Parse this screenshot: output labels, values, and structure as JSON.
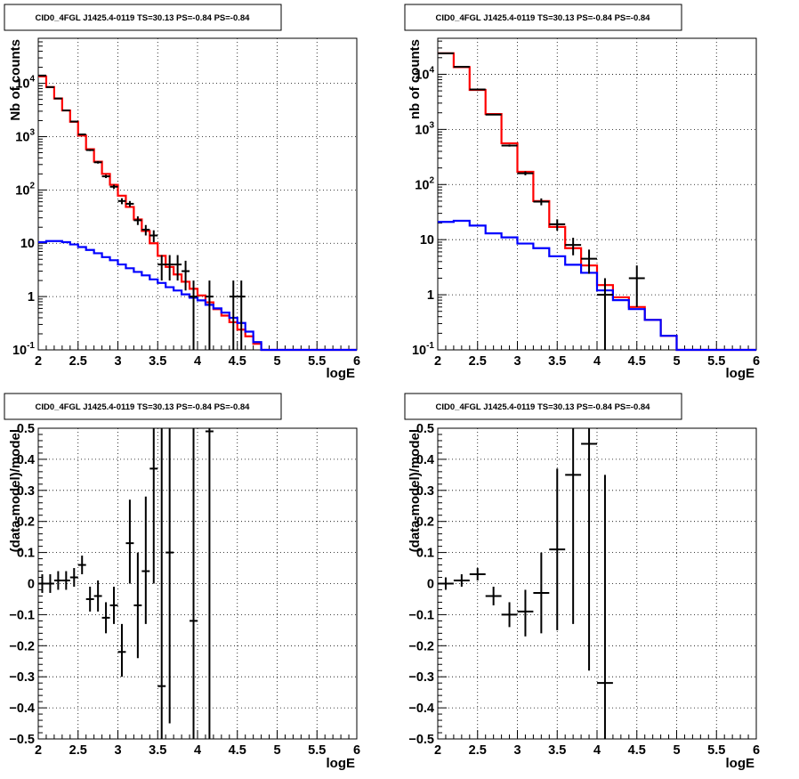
{
  "chart_data": [
    {
      "type": "line",
      "title": "CID0_4FGL J1425.4-0119 TS=30.13 PS=-0.84 PS=-0.84",
      "xlabel": "logE",
      "ylabel": "Nb of counts",
      "xlim": [
        2,
        6
      ],
      "ylim": [
        0.1,
        70000
      ],
      "yscale": "log",
      "xticks": [
        "2",
        "2.5",
        "3",
        "3.5",
        "4",
        "4.5",
        "5",
        "5.5",
        "6"
      ],
      "yticks": [
        "10^-1",
        "1",
        "10",
        "10^2",
        "10^3",
        "10^4"
      ],
      "grid": true,
      "bin_edges": [
        2,
        2.1,
        2.2,
        2.3,
        2.4,
        2.5,
        2.6,
        2.7,
        2.8,
        2.9,
        3.0,
        3.1,
        3.2,
        3.3,
        3.4,
        3.5,
        3.6,
        3.7,
        3.8,
        3.9,
        4.0,
        4.1,
        4.2,
        4.3,
        4.4,
        4.5,
        4.6,
        4.7,
        4.8,
        4.9,
        5.0,
        5.1,
        5.2,
        5.3,
        5.4,
        5.5,
        5.6,
        5.7,
        5.8,
        5.9,
        6.0
      ],
      "series": [
        {
          "role": "model",
          "color": "#ff0000",
          "values": [
            13500,
            8500,
            5200,
            3100,
            1900,
            1050,
            580,
            340,
            200,
            125,
            78,
            48,
            28,
            17,
            10,
            5.8,
            3.6,
            2.6,
            1.9,
            1.4,
            1.05,
            0.78,
            0.58,
            0.44,
            0.33,
            0.24,
            0.18,
            0.13,
            0.1,
            0.1,
            0.1,
            0.1,
            0.1,
            0.1,
            0.1,
            0.1,
            0.1,
            0.1,
            0.1,
            0.1
          ]
        },
        {
          "role": "background",
          "color": "#0000ff",
          "values": [
            10.5,
            11,
            11,
            10.5,
            9.5,
            8.5,
            7.5,
            6.5,
            5.5,
            4.8,
            4.0,
            3.4,
            2.9,
            2.5,
            2.1,
            1.8,
            1.5,
            1.3,
            1.1,
            0.95,
            0.85,
            0.7,
            0.6,
            0.5,
            0.4,
            0.32,
            0.22,
            0.14,
            0.1,
            0.1,
            0.1,
            0.1,
            0.1,
            0.1,
            0.1,
            0.1,
            0.1,
            0.1,
            0.1,
            0.1
          ]
        },
        {
          "role": "data",
          "color": "#000000",
          "points": [
            {
              "x": 2.05,
              "y": 14000,
              "elo": 13880,
              "ehi": 14120
            },
            {
              "x": 2.15,
              "y": 8500,
              "elo": 8410,
              "ehi": 8590
            },
            {
              "x": 2.25,
              "y": 5200,
              "elo": 5130,
              "ehi": 5270
            },
            {
              "x": 2.35,
              "y": 3100,
              "elo": 3045,
              "ehi": 3155
            },
            {
              "x": 2.45,
              "y": 1920,
              "elo": 1875,
              "ehi": 1965
            },
            {
              "x": 2.55,
              "y": 1100,
              "elo": 1066,
              "ehi": 1134
            },
            {
              "x": 2.65,
              "y": 560,
              "elo": 537,
              "ehi": 584
            },
            {
              "x": 2.75,
              "y": 330,
              "elo": 312,
              "ehi": 348
            },
            {
              "x": 2.85,
              "y": 180,
              "elo": 167,
              "ehi": 193
            },
            {
              "x": 2.95,
              "y": 115,
              "elo": 104.5,
              "ehi": 125.5
            },
            {
              "x": 3.05,
              "y": 62,
              "elo": 54,
              "ehi": 70
            },
            {
              "x": 3.15,
              "y": 55,
              "elo": 48,
              "ehi": 62
            },
            {
              "x": 3.25,
              "y": 27,
              "elo": 22,
              "ehi": 32
            },
            {
              "x": 3.35,
              "y": 18,
              "elo": 14,
              "ehi": 22
            },
            {
              "x": 3.45,
              "y": 14,
              "elo": 10.5,
              "ehi": 17.5
            },
            {
              "x": 3.55,
              "y": 4,
              "elo": 2,
              "ehi": 6
            },
            {
              "x": 3.65,
              "y": 4,
              "elo": 2,
              "ehi": 6
            },
            {
              "x": 3.75,
              "y": 4,
              "elo": 2,
              "ehi": 6
            },
            {
              "x": 3.85,
              "y": 3,
              "elo": 1.3,
              "ehi": 4.7
            },
            {
              "x": 3.95,
              "y": 1,
              "elo": 0.1,
              "ehi": 2
            },
            {
              "x": 4.15,
              "y": 1,
              "elo": 0.1,
              "ehi": 2
            },
            {
              "x": 4.45,
              "y": 1,
              "elo": 0.1,
              "ehi": 2
            },
            {
              "x": 4.55,
              "y": 1,
              "elo": 0.1,
              "ehi": 2
            }
          ]
        }
      ]
    },
    {
      "type": "line",
      "title": "CID0_4FGL J1425.4-0119 TS=30.13 PS=-0.84 PS=-0.84",
      "xlabel": "logE",
      "ylabel": "nb of counts",
      "xlim": [
        2,
        6
      ],
      "ylim": [
        0.1,
        45000
      ],
      "yscale": "log",
      "xticks": [
        "2",
        "2.5",
        "3",
        "3.5",
        "4",
        "4.5",
        "5",
        "5.5",
        "6"
      ],
      "yticks": [
        "10^-1",
        "1",
        "10",
        "10^2",
        "10^3",
        "10^4"
      ],
      "grid": true,
      "bin_edges": [
        2.0,
        2.2,
        2.4,
        2.6,
        2.8,
        3.0,
        3.2,
        3.4,
        3.6,
        3.8,
        4.0,
        4.2,
        4.4,
        4.6,
        4.8,
        5.0,
        5.2,
        5.4,
        5.6,
        5.8,
        6.0
      ],
      "series": [
        {
          "role": "model",
          "color": "#ff0000",
          "values": [
            24000,
            13500,
            5200,
            1900,
            560,
            170,
            50,
            17,
            7,
            3.4,
            1.5,
            0.9,
            0.6,
            0.35,
            0.18,
            0.1,
            0.1,
            0.1,
            0.1,
            0.1
          ]
        },
        {
          "role": "background",
          "color": "#0000ff",
          "values": [
            21,
            22,
            18,
            13,
            11,
            8.5,
            7,
            5,
            3.5,
            2.5,
            1.2,
            0.8,
            0.55,
            0.35,
            0.18,
            0.1,
            0.1,
            0.1,
            0.1,
            0.1
          ]
        },
        {
          "role": "data",
          "color": "#000000",
          "points": [
            {
              "x": 2.1,
              "y": 24000,
              "elo": 23845,
              "ehi": 24155
            },
            {
              "x": 2.3,
              "y": 13700,
              "elo": 13583,
              "ehi": 13817
            },
            {
              "x": 2.5,
              "y": 5300,
              "elo": 5227,
              "ehi": 5373
            },
            {
              "x": 2.7,
              "y": 1850,
              "elo": 1807,
              "ehi": 1893
            },
            {
              "x": 2.9,
              "y": 510,
              "elo": 487,
              "ehi": 533
            },
            {
              "x": 3.1,
              "y": 160,
              "elo": 147,
              "ehi": 173
            },
            {
              "x": 3.3,
              "y": 49,
              "elo": 42,
              "ehi": 56
            },
            {
              "x": 3.5,
              "y": 19,
              "elo": 14.6,
              "ehi": 23.4
            },
            {
              "x": 3.7,
              "y": 8,
              "elo": 5.2,
              "ehi": 10.8
            },
            {
              "x": 3.9,
              "y": 4.5,
              "elo": 2.4,
              "ehi": 6.6
            },
            {
              "x": 4.1,
              "y": 1,
              "elo": 0.1,
              "ehi": 2
            },
            {
              "x": 4.5,
              "y": 2,
              "elo": 0.6,
              "ehi": 3.4
            }
          ]
        }
      ]
    },
    {
      "type": "scatter",
      "title": "CID0_4FGL J1425.4-0119 TS=30.13 PS=-0.84 PS=-0.84",
      "xlabel": "logE",
      "ylabel": "(data-model)/model",
      "xlim": [
        2,
        6
      ],
      "ylim": [
        -0.5,
        0.5
      ],
      "xticks": [
        "2",
        "2.5",
        "3",
        "3.5",
        "4",
        "4.5",
        "5",
        "5.5",
        "6"
      ],
      "yticks": [
        "−0.5",
        "−0.4",
        "−0.3",
        "−0.2",
        "−0.1",
        "0",
        "0.1",
        "0.2",
        "0.3",
        "0.4",
        "0.5"
      ],
      "grid": true,
      "points": [
        {
          "x": 2.05,
          "y": 0.0,
          "elo": -0.03,
          "ehi": 0.03
        },
        {
          "x": 2.15,
          "y": 0.0,
          "elo": -0.03,
          "ehi": 0.03
        },
        {
          "x": 2.25,
          "y": 0.01,
          "elo": -0.02,
          "ehi": 0.04
        },
        {
          "x": 2.35,
          "y": 0.01,
          "elo": -0.02,
          "ehi": 0.04
        },
        {
          "x": 2.45,
          "y": 0.02,
          "elo": -0.01,
          "ehi": 0.05
        },
        {
          "x": 2.55,
          "y": 0.06,
          "elo": 0.03,
          "ehi": 0.09
        },
        {
          "x": 2.65,
          "y": -0.05,
          "elo": -0.09,
          "ehi": -0.01
        },
        {
          "x": 2.75,
          "y": -0.04,
          "elo": -0.09,
          "ehi": 0.01
        },
        {
          "x": 2.85,
          "y": -0.11,
          "elo": -0.16,
          "ehi": -0.06
        },
        {
          "x": 2.95,
          "y": -0.07,
          "elo": -0.13,
          "ehi": -0.01
        },
        {
          "x": 3.05,
          "y": -0.22,
          "elo": -0.3,
          "ehi": -0.13
        },
        {
          "x": 3.15,
          "y": 0.13,
          "elo": 0.0,
          "ehi": 0.27
        },
        {
          "x": 3.25,
          "y": -0.07,
          "elo": -0.24,
          "ehi": 0.1
        },
        {
          "x": 3.35,
          "y": 0.04,
          "elo": -0.13,
          "ehi": 0.28
        },
        {
          "x": 3.45,
          "y": 0.37,
          "elo": 0.0,
          "ehi": 0.5
        },
        {
          "x": 3.55,
          "y": -0.33,
          "elo": -0.5,
          "ehi": 0.5
        },
        {
          "x": 3.65,
          "y": 0.1,
          "elo": -0.45,
          "ehi": 0.5
        },
        {
          "x": 3.95,
          "y": -0.12,
          "elo": -0.5,
          "ehi": 0.5
        },
        {
          "x": 4.15,
          "y": 0.49,
          "elo": -0.5,
          "ehi": 0.5
        }
      ]
    },
    {
      "type": "scatter",
      "title": "CID0_4FGL J1425.4-0119 TS=30.13 PS=-0.84 PS=-0.84",
      "xlabel": "logE",
      "ylabel": "(data-model)/model",
      "xlim": [
        2,
        6
      ],
      "ylim": [
        -0.5,
        0.5
      ],
      "xticks": [
        "2",
        "2.5",
        "3",
        "3.5",
        "4",
        "4.5",
        "5",
        "5.5",
        "6"
      ],
      "yticks": [
        "−0.5",
        "−0.4",
        "−0.3",
        "−0.2",
        "−0.1",
        "0",
        "0.1",
        "0.2",
        "0.3",
        "0.4",
        "0.5"
      ],
      "grid": true,
      "points": [
        {
          "x": 2.1,
          "y": 0.0,
          "elo": -0.02,
          "ehi": 0.02
        },
        {
          "x": 2.3,
          "y": 0.01,
          "elo": -0.01,
          "ehi": 0.03
        },
        {
          "x": 2.5,
          "y": 0.03,
          "elo": 0.01,
          "ehi": 0.05
        },
        {
          "x": 2.7,
          "y": -0.04,
          "elo": -0.07,
          "ehi": -0.01
        },
        {
          "x": 2.9,
          "y": -0.1,
          "elo": -0.14,
          "ehi": -0.06
        },
        {
          "x": 3.1,
          "y": -0.09,
          "elo": -0.17,
          "ehi": -0.02
        },
        {
          "x": 3.3,
          "y": -0.03,
          "elo": -0.16,
          "ehi": 0.1
        },
        {
          "x": 3.5,
          "y": 0.11,
          "elo": -0.15,
          "ehi": 0.37
        },
        {
          "x": 3.7,
          "y": 0.35,
          "elo": -0.13,
          "ehi": 0.5
        },
        {
          "x": 3.9,
          "y": 0.45,
          "elo": -0.28,
          "ehi": 0.5
        },
        {
          "x": 4.1,
          "y": -0.32,
          "elo": -0.5,
          "ehi": 0.35
        }
      ]
    }
  ]
}
